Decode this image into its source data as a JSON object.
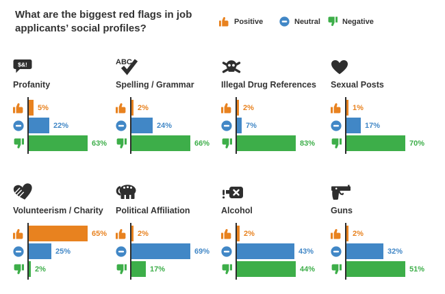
{
  "title": "What are the biggest red flags in job applicants’ social profiles?",
  "legend": {
    "positive": {
      "label": "Positive"
    },
    "neutral": {
      "label": "Neutral"
    },
    "negative": {
      "label": "Negative"
    }
  },
  "chart_data": {
    "type": "bar",
    "orientation": "horizontal",
    "unit": "percent",
    "title": "What are the biggest red flags in job applicants’ social profiles?",
    "series": [
      "Positive",
      "Neutral",
      "Negative"
    ],
    "colors": {
      "positive": "#E8821F",
      "neutral": "#4187C6",
      "negative": "#3DAE49",
      "axis": "#2B2B2B",
      "icon": "#2E2E2E",
      "text": "#333333"
    },
    "layout": {
      "grid": "4x2",
      "scaling": "each mini-chart scaled to its own longest bar",
      "legend_position": "top"
    },
    "charts": [
      {
        "category": "Profanity",
        "icon": "profanity-speech-bubble-icon",
        "values": {
          "positive": 5,
          "neutral": 22,
          "negative": 63
        },
        "labels": [
          "5%",
          "22%",
          "63%"
        ]
      },
      {
        "category": "Spelling / Grammar",
        "icon": "spelling-grammar-abc-check-icon",
        "values": {
          "positive": 2,
          "neutral": 24,
          "negative": 66
        },
        "labels": [
          "2%",
          "24%",
          "66%"
        ]
      },
      {
        "category": "Illegal Drug References",
        "icon": "skull-crossbones-icon",
        "values": {
          "positive": 2,
          "neutral": 7,
          "negative": 83
        },
        "labels": [
          "2%",
          "7%",
          "83%"
        ]
      },
      {
        "category": "Sexual Posts",
        "icon": "heart-icon",
        "values": {
          "positive": 1,
          "neutral": 17,
          "negative": 70
        },
        "labels": [
          "1%",
          "17%",
          "70%"
        ]
      },
      {
        "category": "Volunteerism / Charity",
        "icon": "heart-hand-icon",
        "values": {
          "positive": 65,
          "neutral": 25,
          "negative": 2
        },
        "labels": [
          "65%",
          "25%",
          "2%"
        ]
      },
      {
        "category": "Political Affiliation",
        "icon": "elephant-icon",
        "values": {
          "positive": 2,
          "neutral": 69,
          "negative": 17
        },
        "labels": [
          "2%",
          "69%",
          "17%"
        ]
      },
      {
        "category": "Alcohol",
        "icon": "alcohol-flask-icon",
        "values": {
          "positive": 2,
          "neutral": 43,
          "negative": 44
        },
        "labels": [
          "2%",
          "43%",
          "44%"
        ]
      },
      {
        "category": "Guns",
        "icon": "gun-icon",
        "values": {
          "positive": 2,
          "neutral": 32,
          "negative": 51
        },
        "labels": [
          "2%",
          "32%",
          "51%"
        ]
      }
    ]
  }
}
